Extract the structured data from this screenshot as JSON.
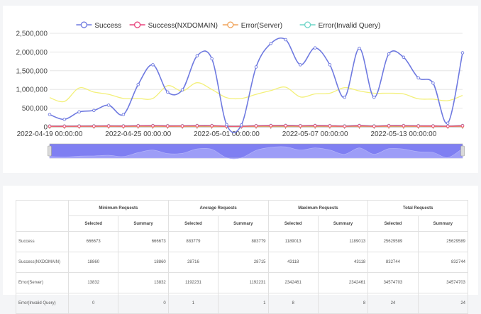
{
  "chart_data": {
    "type": "line",
    "series": [
      {
        "name": "Success",
        "color": "#6f7ae0",
        "values": [
          330000,
          200000,
          400000,
          440000,
          580000,
          330000,
          1130000,
          1660000,
          930000,
          990000,
          1900000,
          1820000,
          60000,
          50000,
          1600000,
          2230000,
          2330000,
          1660000,
          2110000,
          1660000,
          790000,
          2100000,
          790000,
          1950000,
          1860000,
          1310000,
          1170000,
          100000,
          1980000
        ]
      },
      {
        "name": "Success(NXDOMAIN)",
        "color": "#e8447d",
        "values": [
          18000,
          18000,
          20000,
          22000,
          25000,
          22000,
          28000,
          30000,
          25000,
          26000,
          30000,
          30000,
          18000,
          18000,
          28000,
          32000,
          33000,
          28000,
          32000,
          28000,
          20000,
          32000,
          20000,
          30000,
          30000,
          26000,
          24000,
          18000,
          30000
        ]
      },
      {
        "name": "Error(Server)",
        "color": "#f0a35a",
        "values": [
          10000,
          10000,
          12000,
          12000,
          14000,
          12000,
          15000,
          16000,
          14000,
          14000,
          16000,
          16000,
          10000,
          10000,
          15000,
          17000,
          17000,
          15000,
          17000,
          15000,
          12000,
          17000,
          12000,
          16000,
          16000,
          14000,
          13000,
          10000,
          16000
        ]
      },
      {
        "name": "Error(Invalid Query)",
        "color": "#6fd5c8",
        "values": [
          25000,
          25000,
          28000,
          30000,
          32000,
          30000,
          35000,
          38000,
          33000,
          33000,
          38000,
          38000,
          25000,
          25000,
          35000,
          40000,
          42000,
          36000,
          40000,
          36000,
          28000,
          40000,
          28000,
          38000,
          38000,
          33000,
          31000,
          25000,
          38000
        ]
      },
      {
        "name": "",
        "color": "#f3f07a",
        "values": [
          780000,
          680000,
          1040000,
          930000,
          870000,
          760000,
          760000,
          760000,
          1100000,
          960000,
          1180000,
          1000000,
          780000,
          760000,
          870000,
          970000,
          1060000,
          800000,
          880000,
          900000,
          1050000,
          960000,
          900000,
          900000,
          880000,
          750000,
          740000,
          700000,
          840000
        ]
      }
    ],
    "x_ticks": [
      "2022-04-19 00:00:00",
      "2022-04-25 00:00:00",
      "2022-05-01 00:00:00",
      "2022-05-07 00:00:00",
      "2022-05-13 00:00:00"
    ],
    "y_ticks": [
      "2,500,000",
      "2,000,000",
      "1,500,000",
      "1,000,000",
      "500,000",
      "0"
    ],
    "ylim": [
      0,
      2500000
    ],
    "legend_position": "top",
    "grid": true
  },
  "table": {
    "groups": [
      "Minimum Requests",
      "Average Requests",
      "Maximum Requests",
      "Total Requests"
    ],
    "sub": [
      "Selected",
      "Summary"
    ],
    "rows": [
      {
        "label": "Success",
        "vals": [
          "666673",
          "666673",
          "883779",
          "883779",
          "1189013",
          "1189013",
          "25629589",
          "25629589"
        ]
      },
      {
        "label": "Success(NXDOMAIN)",
        "vals": [
          "18860",
          "18860",
          "28716",
          "28715",
          "43118",
          "43118",
          "832744",
          "832744"
        ]
      },
      {
        "label": "Error(Server)",
        "vals": [
          "13832",
          "13832",
          "1192231",
          "1192231",
          "2342461",
          "2342461",
          "34574703",
          "34574703"
        ]
      },
      {
        "label": "Error(Invalid Query)",
        "vals": [
          "0",
          "0",
          "1",
          "1",
          "8",
          "8",
          "24",
          "24"
        ]
      }
    ]
  }
}
